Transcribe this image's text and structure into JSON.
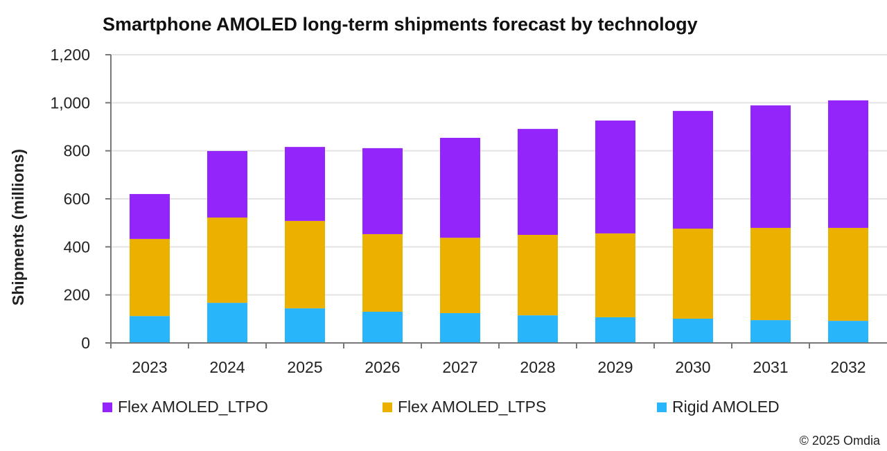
{
  "chart_data": {
    "type": "bar",
    "stacked": true,
    "title": "Smartphone AMOLED long-term shipments forecast by technology",
    "xlabel": "",
    "ylabel": "Shipments (millions)",
    "ylim": [
      0,
      1200
    ],
    "yticks": [
      0,
      200,
      400,
      600,
      800,
      1000,
      1200
    ],
    "ytick_labels": [
      "0",
      "200",
      "400",
      "600",
      "800",
      "1,000",
      "1,200"
    ],
    "grid": true,
    "legend_position": "bottom",
    "categories": [
      "2023",
      "2024",
      "2025",
      "2026",
      "2027",
      "2028",
      "2029",
      "2030",
      "2031",
      "2032"
    ],
    "series": [
      {
        "name": "Rigid AMOLED",
        "color": "#29B5FA",
        "values": [
          112,
          167,
          144,
          130,
          124,
          115,
          107,
          101,
          95,
          92
        ]
      },
      {
        "name": "Flex AMOLED_LTPS",
        "color": "#EBB000",
        "values": [
          321,
          355,
          364,
          323,
          314,
          335,
          349,
          375,
          384,
          387
        ]
      },
      {
        "name": "Flex AMOLED_LTPO",
        "color": "#9325FA",
        "values": [
          187,
          277,
          308,
          358,
          416,
          441,
          470,
          490,
          510,
          531
        ]
      }
    ],
    "legend_order": [
      "Flex AMOLED_LTPO",
      "Flex AMOLED_LTPS",
      "Rigid AMOLED"
    ]
  },
  "credit": "© 2025 Omdia"
}
